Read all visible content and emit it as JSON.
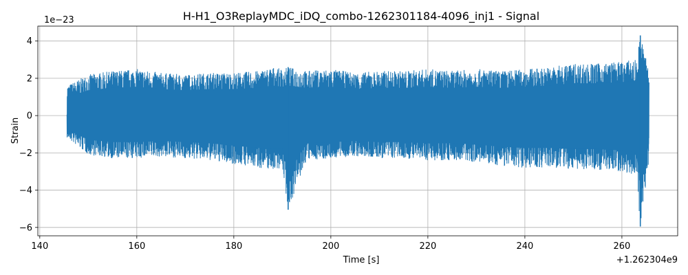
{
  "chart_data": {
    "type": "line",
    "title": "H-H1_O3ReplayMDC_iDQ_combo-1262301184-4096_inj1 - Signal",
    "xlabel": "Time [s]",
    "ylabel": "Strain",
    "x_offset_label": "+1.262304e9",
    "y_scale_label": "1e−23",
    "xlim": [
      139.6,
      271.5
    ],
    "ylim": [
      -6.45,
      4.8
    ],
    "x_ticks": [
      140,
      160,
      180,
      200,
      220,
      240,
      260
    ],
    "x_tick_labels": [
      "140",
      "160",
      "180",
      "200",
      "220",
      "240",
      "260"
    ],
    "y_ticks": [
      -6,
      -4,
      -2,
      0,
      2,
      4
    ],
    "y_tick_labels": [
      "−6",
      "−4",
      "−2",
      "0",
      "2",
      "4"
    ],
    "grid": true,
    "legend": "none",
    "series": [
      {
        "color": "#1f77b4",
        "x_start": 145.6,
        "x_end": 265.6,
        "envelope": {
          "x": [
            145.6,
            150,
            155,
            160,
            165,
            170,
            175,
            180,
            185,
            188,
            190,
            191.2,
            195,
            200,
            205,
            210,
            215,
            220,
            225,
            230,
            235,
            240,
            245,
            250,
            255,
            260,
            263,
            263.8,
            265.6
          ],
          "upper": [
            1.6,
            2.2,
            2.4,
            2.5,
            2.3,
            2.2,
            2.3,
            2.3,
            2.4,
            2.6,
            2.5,
            2.6,
            2.4,
            2.5,
            2.3,
            2.4,
            2.4,
            2.5,
            2.4,
            2.5,
            2.4,
            2.5,
            2.6,
            2.8,
            2.8,
            2.9,
            3.0,
            4.3,
            2.5
          ],
          "lower": [
            -1.2,
            -2.1,
            -2.3,
            -2.3,
            -2.2,
            -2.3,
            -2.4,
            -2.6,
            -2.8,
            -2.9,
            -2.8,
            -5.05,
            -2.4,
            -2.3,
            -2.2,
            -2.3,
            -2.3,
            -2.4,
            -2.4,
            -2.5,
            -2.7,
            -2.8,
            -2.8,
            -2.9,
            -2.9,
            -3.0,
            -3.2,
            -5.95,
            -2.4
          ]
        }
      }
    ]
  }
}
